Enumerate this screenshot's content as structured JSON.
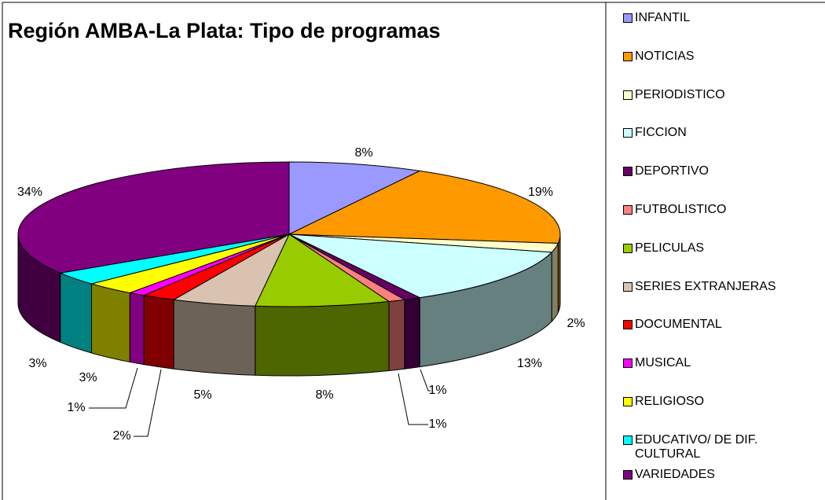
{
  "chart_data": {
    "type": "pie",
    "title": "Región AMBA-La Plata: Tipo de programas",
    "categories": [
      "INFANTIL",
      "NOTICIAS",
      "PERIODISTICO",
      "FICCION",
      "DEPORTIVO",
      "FUTBOLISTICO",
      "PELICULAS",
      "SERIES EXTRANJERAS",
      "DOCUMENTAL",
      "MUSICAL",
      "RELIGIOSO",
      "EDUCATIVO/ DE DIF. CULTURAL",
      "VARIEDADES"
    ],
    "values": [
      8,
      19,
      2,
      13,
      1,
      1,
      8,
      5,
      2,
      1,
      3,
      3,
      34
    ],
    "value_labels": [
      "8%",
      "19%",
      "2%",
      "13%",
      "1%",
      "1%",
      "8%",
      "5%",
      "2%",
      "1%",
      "3%",
      "3%",
      "34%"
    ],
    "colors": [
      "#9999ff",
      "#ff9900",
      "#ffffcc",
      "#ccffff",
      "#660066",
      "#ff8080",
      "#99cc00",
      "#d9c3b0",
      "#ff0000",
      "#ff00ff",
      "#ffff00",
      "#00ffff",
      "#800080"
    ],
    "legend": "right"
  }
}
